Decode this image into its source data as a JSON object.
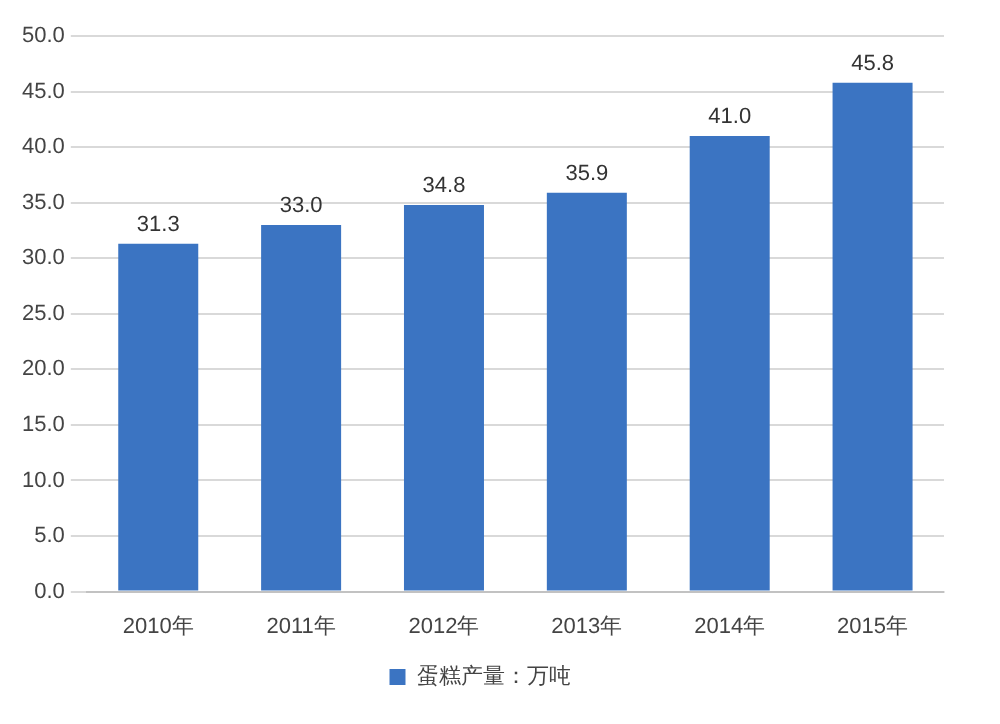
{
  "chart_data": {
    "type": "bar",
    "categories": [
      "2010年",
      "2011年",
      "2012年",
      "2013年",
      "2014年",
      "2015年"
    ],
    "series": [
      {
        "name": "蛋糕产量：万吨",
        "color": "#3b74c2",
        "values": [
          31.3,
          33.0,
          34.8,
          35.9,
          41.0,
          45.8
        ],
        "value_labels": [
          "31.3",
          "33.0",
          "34.8",
          "35.9",
          "41.0",
          "45.8"
        ]
      }
    ],
    "ylim": [
      0,
      50
    ],
    "yticks": [
      {
        "value": 0,
        "label": "0.0"
      },
      {
        "value": 5,
        "label": "5.0"
      },
      {
        "value": 10,
        "label": "10.0"
      },
      {
        "value": 15,
        "label": "15.0"
      },
      {
        "value": 20,
        "label": "20.0"
      },
      {
        "value": 25,
        "label": "25.0"
      },
      {
        "value": 30,
        "label": "30.0"
      },
      {
        "value": 35,
        "label": "35.0"
      },
      {
        "value": 40,
        "label": "40.0"
      },
      {
        "value": 45,
        "label": "45.0"
      },
      {
        "value": 50,
        "label": "50.0"
      }
    ],
    "grid": "y",
    "legend": "bottom"
  }
}
